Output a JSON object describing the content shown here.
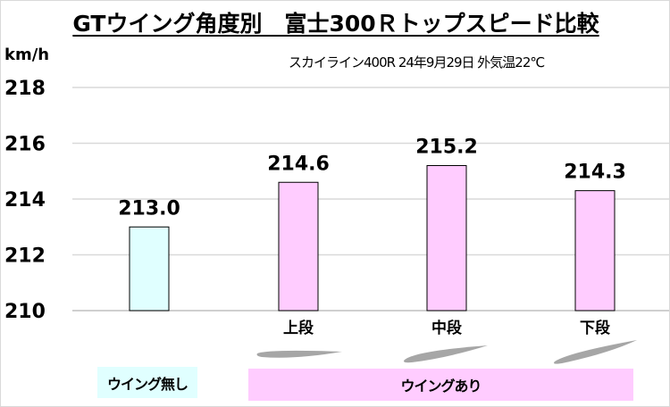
{
  "chart_data": {
    "type": "bar",
    "title": "GTウイング角度別　富士300Ｒトップスピード比較",
    "subtitle": "スカイライン400R 24年9月29日 外気温22℃",
    "ylabel": "km/h",
    "ylim": [
      210,
      218
    ],
    "yticks": [
      210,
      212,
      214,
      216,
      218
    ],
    "grid": true,
    "categories": [
      "",
      "上段",
      "中段",
      "下段"
    ],
    "values": [
      213.0,
      214.6,
      215.2,
      214.3
    ],
    "value_labels": [
      "213.0",
      "214.6",
      "215.2",
      "214.3"
    ],
    "bar_colors": [
      "#e0ffff",
      "#ffccff",
      "#ffccff",
      "#ffccff"
    ],
    "groups": [
      {
        "label": "ウイング無し",
        "color": "#e0ffff"
      },
      {
        "label": "ウイングあり",
        "color": "#ffccff"
      }
    ]
  }
}
